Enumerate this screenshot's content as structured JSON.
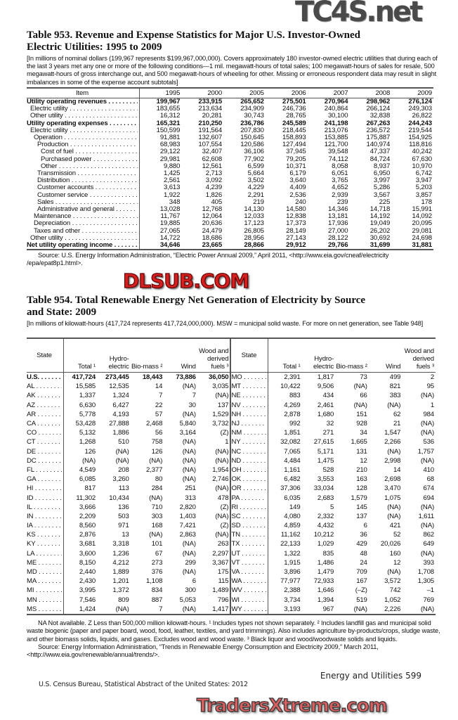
{
  "watermarks": {
    "top": "TC4S.net",
    "middle": "DLSUB.COM",
    "bottom": "TradersXtreme.com"
  },
  "table953": {
    "title_line1": "Table 953. Revenue and Expense Statistics for Major U.S. Investor-Owned",
    "title_line2": "Electric Utilities: 1995 to 2009",
    "note": "[In millions of nominal dollars (199,967 represents $199,967,000,000). Covers approximately 180 investor-owned electric utilities that during each of the last 3 years met any one or more of the following conditions—1 mil. megawatt-hours of total sales; 100 megawatt-hours of sales for resale, 500 megawatt-hours of gross interchange out, and 500 megawatt-hours of wheeling for other. Missing or erroneous respondent data may result in slight imbalances in some of the expense account subtotals]",
    "columns": [
      "Item",
      "1995",
      "2000",
      "2005",
      "2006",
      "2007",
      "2008",
      "2009"
    ],
    "rows": [
      {
        "label": "Utility operating revenues",
        "level": 0,
        "bold": true,
        "values": [
          "199,967",
          "233,915",
          "265,652",
          "275,501",
          "270,964",
          "298,962",
          "276,124"
        ]
      },
      {
        "label": "Electric utility",
        "level": 1,
        "values": [
          "183,655",
          "213,634",
          "234,909",
          "246,736",
          "240,864",
          "266,124",
          "249,303"
        ]
      },
      {
        "label": "Other utility",
        "level": 1,
        "values": [
          "16,312",
          "20,281",
          "30,743",
          "28,765",
          "30,100",
          "32,838",
          "26,822"
        ]
      },
      {
        "label": "Utility operating expenses",
        "level": 0,
        "bold": true,
        "values": [
          "165,321",
          "210,250",
          "236,786",
          "245,589",
          "241,198",
          "267,263",
          "244,243"
        ]
      },
      {
        "label": "Electric utility",
        "level": 1,
        "values": [
          "150,599",
          "191,564",
          "207,830",
          "218,445",
          "213,076",
          "236,572",
          "219,544"
        ]
      },
      {
        "label": "Operation",
        "level": 2,
        "values": [
          "91,881",
          "132,607",
          "150,645",
          "158,893",
          "153,885",
          "175,887",
          "154,925"
        ]
      },
      {
        "label": "Production",
        "level": 3,
        "values": [
          "68,983",
          "107,554",
          "120,586",
          "127,494",
          "121,700",
          "140,974",
          "118,816"
        ]
      },
      {
        "label": "Cost of fuel",
        "level": 4,
        "values": [
          "29,122",
          "32,407",
          "36,106",
          "37,945",
          "39,548",
          "47,337",
          "40,242"
        ]
      },
      {
        "label": "Purchased power",
        "level": 4,
        "values": [
          "29,981",
          "62,608",
          "77,902",
          "79,205",
          "74,112",
          "84,724",
          "67,630"
        ]
      },
      {
        "label": "Other",
        "level": 4,
        "values": [
          "9,880",
          "12,561",
          "6,599",
          "10,371",
          "8,058",
          "8,937",
          "10,970"
        ]
      },
      {
        "label": "Transmission",
        "level": 3,
        "values": [
          "1,425",
          "2,713",
          "5,664",
          "6,179",
          "6,051",
          "6,950",
          "6,742"
        ]
      },
      {
        "label": "Distribution",
        "level": 3,
        "values": [
          "2,561",
          "3,092",
          "3,502",
          "3,640",
          "3,765",
          "3,997",
          "3,947"
        ]
      },
      {
        "label": "Customer accounts",
        "level": 3,
        "values": [
          "3,613",
          "4,239",
          "4,229",
          "4,409",
          "4,652",
          "5,286",
          "5,203"
        ]
      },
      {
        "label": "Customer service",
        "level": 3,
        "values": [
          "1,922",
          "1,826",
          "2,291",
          "2,536",
          "2,939",
          "3,567",
          "3,857"
        ]
      },
      {
        "label": "Sales",
        "level": 3,
        "values": [
          "348",
          "405",
          "219",
          "240",
          "239",
          "225",
          "178"
        ]
      },
      {
        "label": "Administrative and general",
        "level": 3,
        "values": [
          "13,028",
          "12,768",
          "14,130",
          "14,580",
          "14,346",
          "14,718",
          "15,991"
        ]
      },
      {
        "label": "Maintenance",
        "level": 2,
        "values": [
          "11,767",
          "12,064",
          "12,033",
          "12,838",
          "13,181",
          "14,192",
          "14,092"
        ]
      },
      {
        "label": "Depreciation",
        "level": 2,
        "values": [
          "19,885",
          "20,636",
          "17,123",
          "17,373",
          "17,936",
          "19,049",
          "20,095"
        ]
      },
      {
        "label": "Taxes and other",
        "level": 2,
        "values": [
          "27,065",
          "24,479",
          "26,805",
          "28,149",
          "27,000",
          "26,202",
          "29,081"
        ]
      },
      {
        "label": "Other utility",
        "level": 1,
        "values": [
          "14,722",
          "18,686",
          "28,956",
          "27,143",
          "28,122",
          "30,692",
          "24,698"
        ]
      },
      {
        "label": "Net utility operating income",
        "level": 0,
        "bold": true,
        "values": [
          "34,646",
          "23,665",
          "28,866",
          "29,912",
          "29,766",
          "31,699",
          "31,881"
        ]
      }
    ],
    "source": "Source: U.S. Energy Information Administration, “Electric Power Annual 2009,” April 2011, <http://www.eia.gov/cneaf/electricity /epa/epat8p1.html>."
  },
  "table954": {
    "title_line1": "Table 954. Total Renewable Energy Net Generation of Electricity by Source",
    "title_line2": "and State: 2009",
    "note": "[In millions of kilowatt-hours (417,724 represents 417,724,000,000). MSW = municipal solid waste. For more on net generation, see Table 948]",
    "columns": [
      "State",
      "Total ¹",
      "Hydro-electric",
      "Bio-mass ²",
      "Wind",
      "Wood and derived fuels ³"
    ],
    "left_rows": [
      {
        "state": "U.S.",
        "bold": true,
        "values": [
          "417,724",
          "273,445",
          "18,443",
          "73,886",
          "36,050"
        ]
      },
      {
        "state": "AL",
        "values": [
          "15,585",
          "12,535",
          "14",
          "(NA)",
          "3,035"
        ]
      },
      {
        "state": "AK",
        "values": [
          "1,337",
          "1,324",
          "7",
          "7",
          "(NA)"
        ]
      },
      {
        "state": "AZ",
        "values": [
          "6,630",
          "6,427",
          "22",
          "30",
          "137"
        ]
      },
      {
        "state": "AR",
        "values": [
          "5,778",
          "4,193",
          "57",
          "(NA)",
          "1,529"
        ]
      },
      {
        "state": "CA",
        "values": [
          "53,428",
          "27,888",
          "2,468",
          "5,840",
          "3,732"
        ]
      },
      {
        "state": "CO",
        "values": [
          "5,132",
          "1,886",
          "56",
          "3,164",
          "(Z)"
        ]
      },
      {
        "state": "CT",
        "values": [
          "1,268",
          "510",
          "758",
          "(NA)",
          "1"
        ]
      },
      {
        "state": "DE",
        "values": [
          "126",
          "(NA)",
          "126",
          "(NA)",
          "(NA)"
        ]
      },
      {
        "state": "DC",
        "values": [
          "(NA)",
          "(NA)",
          "(NA)",
          "(NA)",
          "(NA)"
        ]
      },
      {
        "state": "FL",
        "values": [
          "4,549",
          "208",
          "2,377",
          "(NA)",
          "1,954"
        ]
      },
      {
        "state": "GA",
        "values": [
          "6,085",
          "3,260",
          "80",
          "(NA)",
          "2,746"
        ]
      },
      {
        "state": "HI",
        "values": [
          "817",
          "113",
          "284",
          "251",
          "(NA)"
        ]
      },
      {
        "state": "ID",
        "values": [
          "11,302",
          "10,434",
          "(NA)",
          "313",
          "478"
        ]
      },
      {
        "state": "IL",
        "values": [
          "3,666",
          "136",
          "710",
          "2,820",
          "(Z)"
        ]
      },
      {
        "state": "IN",
        "values": [
          "2,209",
          "503",
          "303",
          "1,403",
          "(NA)"
        ]
      },
      {
        "state": "IA",
        "values": [
          "8,560",
          "971",
          "168",
          "7,421",
          "(Z)"
        ]
      },
      {
        "state": "KS",
        "values": [
          "2,876",
          "13",
          "(NA)",
          "2,863",
          "(NA)"
        ]
      },
      {
        "state": "KY",
        "values": [
          "3,681",
          "3,318",
          "101",
          "(NA)",
          "263"
        ]
      },
      {
        "state": "LA",
        "values": [
          "3,600",
          "1,236",
          "67",
          "(NA)",
          "2,297"
        ]
      },
      {
        "state": "ME",
        "values": [
          "8,150",
          "4,212",
          "273",
          "299",
          "3,367"
        ]
      },
      {
        "state": "MD",
        "values": [
          "2,440",
          "1,889",
          "376",
          "(NA)",
          "175"
        ]
      },
      {
        "state": "MA",
        "values": [
          "2,430",
          "1,201",
          "1,108",
          "6",
          "115"
        ]
      },
      {
        "state": "MI",
        "values": [
          "3,995",
          "1,372",
          "834",
          "300",
          "1,489"
        ]
      },
      {
        "state": "MN",
        "values": [
          "7,546",
          "809",
          "887",
          "5,053",
          "796"
        ]
      },
      {
        "state": "MS",
        "values": [
          "1,424",
          "(NA)",
          "7",
          "(NA)",
          "1,417"
        ]
      }
    ],
    "right_rows": [
      {
        "state": "MO",
        "values": [
          "2,391",
          "1,817",
          "73",
          "499",
          "2"
        ]
      },
      {
        "state": "MT",
        "values": [
          "10,422",
          "9,506",
          "(NA)",
          "821",
          "95"
        ]
      },
      {
        "state": "NE",
        "values": [
          "883",
          "434",
          "66",
          "383",
          "(NA)"
        ]
      },
      {
        "state": "NV",
        "values": [
          "4,269",
          "2,461",
          "(NA)",
          "(NA)",
          "1"
        ]
      },
      {
        "state": "NH",
        "values": [
          "2,878",
          "1,680",
          "151",
          "62",
          "984"
        ]
      },
      {
        "state": "NJ",
        "values": [
          "992",
          "32",
          "928",
          "21",
          "(NA)"
        ]
      },
      {
        "state": "NM",
        "values": [
          "1,851",
          "271",
          "34",
          "1,547",
          "(NA)"
        ]
      },
      {
        "state": "NY",
        "values": [
          "32,082",
          "27,615",
          "1,665",
          "2,266",
          "536"
        ]
      },
      {
        "state": "NC",
        "values": [
          "7,065",
          "5,171",
          "131",
          "(NA)",
          "1,757"
        ]
      },
      {
        "state": "ND",
        "values": [
          "4,484",
          "1,475",
          "12",
          "2,998",
          "(NA)"
        ]
      },
      {
        "state": "OH",
        "values": [
          "1,161",
          "528",
          "210",
          "14",
          "410"
        ]
      },
      {
        "state": "OK",
        "values": [
          "6,482",
          "3,553",
          "163",
          "2,698",
          "68"
        ]
      },
      {
        "state": "OR",
        "values": [
          "37,306",
          "33,034",
          "128",
          "3,470",
          "674"
        ]
      },
      {
        "state": "PA",
        "values": [
          "6,035",
          "2,683",
          "1,579",
          "1,075",
          "694"
        ]
      },
      {
        "state": "RI",
        "values": [
          "149",
          "5",
          "145",
          "(NA)",
          "(NA)"
        ]
      },
      {
        "state": "SC",
        "values": [
          "4,080",
          "2,332",
          "137",
          "(NA)",
          "1,611"
        ]
      },
      {
        "state": "SD",
        "values": [
          "4,859",
          "4,432",
          "6",
          "421",
          "(NA)"
        ]
      },
      {
        "state": "TN",
        "values": [
          "11,162",
          "10,212",
          "36",
          "52",
          "862"
        ]
      },
      {
        "state": "TX",
        "values": [
          "22,133",
          "1,029",
          "429",
          "20,026",
          "649"
        ]
      },
      {
        "state": "UT",
        "values": [
          "1,322",
          "835",
          "48",
          "160",
          "(NA)"
        ]
      },
      {
        "state": "VT",
        "values": [
          "1,915",
          "1,486",
          "24",
          "12",
          "393"
        ]
      },
      {
        "state": "VA",
        "values": [
          "3,896",
          "1,479",
          "709",
          "(NA)",
          "1,708"
        ]
      },
      {
        "state": "WA",
        "values": [
          "77,977",
          "72,933",
          "167",
          "3,572",
          "1,305"
        ]
      },
      {
        "state": "WV",
        "values": [
          "2,388",
          "1,646",
          "(–Z)",
          "742",
          "–1"
        ]
      },
      {
        "state": "WI",
        "values": [
          "3,734",
          "1,394",
          "519",
          "1,052",
          "769"
        ]
      },
      {
        "state": "WY",
        "values": [
          "3,193",
          "967",
          "(NA)",
          "2,226",
          "(NA)"
        ]
      }
    ],
    "footnote": "NA Not available. Z Less than 500,000 million kilowatt-hours. ¹ Includes types not shown separately. ² Includes landfill gas and municipal solid waste biogenic (paper and paper board, wood, food, leather, textiles, and yard trimmings). Also includes agriculture by-products/crops, sludge waste, and other biomass solids, liquids, and gases. Excludes wood and wood waste. ³ Black liquor and wood/woodwaste solids and liquids.",
    "source": "Source: Energy Information Administration, “Trends in Renewable Energy Consumption and Electricity 2009,” March 2011, <http://www.eia.gov/renewable/annual/trends/>."
  },
  "footer": {
    "left": "U.S. Census Bureau, Statistical Abstract of the United States: 2012",
    "right": "Energy and Utilities  599"
  }
}
